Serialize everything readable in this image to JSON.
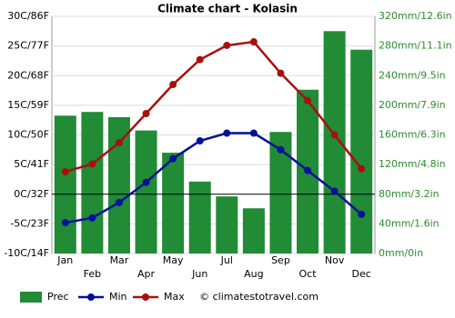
{
  "chart_data": {
    "type": "combo",
    "title": "Climate chart - Kolasin",
    "categories": [
      "Jan",
      "Feb",
      "Mar",
      "Apr",
      "May",
      "Jun",
      "Jul",
      "Aug",
      "Sep",
      "Oct",
      "Nov",
      "Dec"
    ],
    "series": [
      {
        "name": "Prec",
        "type": "bar",
        "axis": "y2",
        "color": "#218b36",
        "values": [
          186,
          191,
          184,
          166,
          136,
          97,
          77,
          61,
          164,
          221,
          300,
          275
        ]
      },
      {
        "name": "Min",
        "type": "line",
        "color": "#00109a",
        "values": [
          -4.8,
          -4.0,
          -1.4,
          2.0,
          6.0,
          9.0,
          10.3,
          10.3,
          7.5,
          4.0,
          0.5,
          -3.4
        ]
      },
      {
        "name": "Max",
        "type": "line",
        "color": "#a81010",
        "values": [
          3.8,
          5.1,
          8.7,
          13.6,
          18.5,
          22.7,
          25.1,
          25.7,
          20.4,
          15.8,
          10.0,
          4.3
        ]
      }
    ],
    "ylim": [
      -10,
      30
    ],
    "yticks": [
      {
        "value": -10,
        "label": "-10C/14F"
      },
      {
        "value": -5,
        "label": "-5C/23F"
      },
      {
        "value": 0,
        "label": "0C/32F"
      },
      {
        "value": 5,
        "label": "5C/41F"
      },
      {
        "value": 10,
        "label": "10C/50F"
      },
      {
        "value": 15,
        "label": "15C/59F"
      },
      {
        "value": 20,
        "label": "20C/68F"
      },
      {
        "value": 25,
        "label": "25C/77F"
      },
      {
        "value": 30,
        "label": "30C/86F"
      }
    ],
    "y2lim": [
      0,
      320
    ],
    "y2ticks": [
      {
        "value": 0,
        "label": "0mm/0in"
      },
      {
        "value": 40,
        "label": "40mm/1.6in"
      },
      {
        "value": 80,
        "label": "80mm/3.2in"
      },
      {
        "value": 120,
        "label": "120mm/4.8in"
      },
      {
        "value": 160,
        "label": "160mm/6.3in"
      },
      {
        "value": 200,
        "label": "200mm/7.9in"
      },
      {
        "value": 240,
        "label": "240mm/9.5in"
      },
      {
        "value": 280,
        "label": "280mm/11.1in"
      },
      {
        "value": 320,
        "label": "320mm/12.6in"
      }
    ],
    "grid": true,
    "credit": "© climatestotravel.com"
  }
}
